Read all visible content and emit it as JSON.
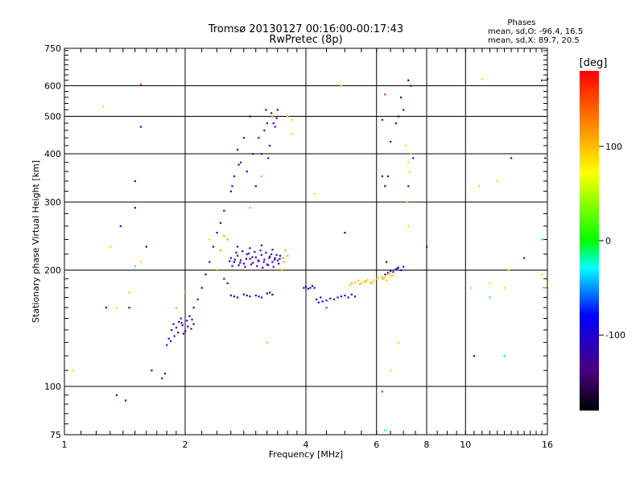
{
  "chart_data": {
    "type": "scatter",
    "title": "Tromsø 20130127 00:16:00-00:17:43",
    "subtitle": "RwPretec (8p)",
    "xlabel": "Frequency [MHz]",
    "ylabel": "Stationary phase Virtual Height [km]",
    "x_scale": "log",
    "y_scale": "log",
    "xlim": [
      1,
      16
    ],
    "ylim": [
      75,
      750
    ],
    "x_ticks": [
      1,
      2,
      4,
      6,
      8,
      10,
      16
    ],
    "y_ticks": [
      75,
      100,
      200,
      300,
      400,
      500,
      600,
      750
    ],
    "grid": true,
    "stats": {
      "heading": "Phases",
      "line1": "mean, sd,O: -96.4, 16.5",
      "line2": "mean, sd,X:  89.7, 20.5"
    },
    "colorbar": {
      "label": "[deg]",
      "ticks": [
        100,
        0,
        -100
      ],
      "range": [
        -180,
        180
      ]
    },
    "point_groups": [
      {
        "phase": -110,
        "x": [
          2.6,
          2.65,
          2.7,
          2.75,
          2.8,
          2.85,
          2.9,
          2.95,
          3.0,
          3.05,
          3.1,
          3.15,
          3.2,
          3.25,
          3.3,
          3.35,
          3.4,
          3.45,
          2.62,
          2.72,
          2.82,
          2.92,
          3.02,
          3.12,
          3.22,
          3.32,
          3.42,
          2.68,
          2.78,
          2.88,
          2.98,
          3.08,
          3.18,
          3.28,
          3.38,
          2.58,
          2.66,
          2.74,
          2.84,
          2.94,
          3.04,
          3.14,
          3.24,
          3.34,
          3.44,
          2.7,
          2.9,
          3.1,
          3.3
        ],
        "y": [
          215,
          210,
          218,
          212,
          208,
          220,
          214,
          209,
          216,
          211,
          219,
          213,
          207,
          217,
          210,
          215,
          212,
          218,
          205,
          206,
          204,
          207,
          205,
          203,
          206,
          204,
          208,
          222,
          224,
          221,
          223,
          225,
          222,
          220,
          219,
          211,
          213,
          209,
          214,
          216,
          212,
          210,
          215,
          213,
          214,
          230,
          228,
          232,
          226
        ]
      },
      {
        "phase": -105,
        "x": [
          2.6,
          2.7,
          2.8,
          2.9,
          3.0,
          3.1,
          3.2,
          3.3,
          2.65,
          2.85,
          3.05,
          3.25,
          2.55,
          2.5
        ],
        "y": [
          172,
          170,
          173,
          171,
          172,
          170,
          174,
          173,
          171,
          172,
          171,
          175,
          185,
          190
        ]
      },
      {
        "phase": -112,
        "x": [
          2.6,
          2.65,
          2.7,
          2.8,
          2.9,
          3.0,
          3.1,
          3.15,
          3.2,
          3.25,
          3.3,
          3.35,
          3.4,
          2.75,
          2.85,
          2.95,
          3.05,
          3.18,
          3.22,
          3.28,
          3.32,
          3.38,
          2.62,
          2.72
        ],
        "y": [
          320,
          350,
          410,
          440,
          500,
          330,
          400,
          460,
          480,
          420,
          500,
          470,
          520,
          380,
          360,
          400,
          440,
          520,
          390,
          510,
          480,
          495,
          330,
          375
        ]
      },
      {
        "phase": -108,
        "x": [
          1.82,
          1.85,
          1.87,
          1.9,
          1.92,
          1.95,
          1.97,
          2.0,
          2.02,
          2.05,
          2.07,
          2.1,
          1.88,
          1.93,
          1.98,
          2.03,
          2.08,
          1.8,
          1.84,
          1.96
        ],
        "y": [
          133,
          140,
          145,
          142,
          138,
          150,
          144,
          139,
          148,
          152,
          141,
          145,
          135,
          147,
          137,
          143,
          149,
          128,
          131,
          146
        ]
      },
      {
        "phase": -106,
        "x": [
          2.1,
          2.15,
          2.2,
          2.25,
          2.3,
          2.35,
          2.4,
          2.45,
          2.5
        ],
        "y": [
          160,
          168,
          180,
          195,
          210,
          230,
          250,
          265,
          285
        ]
      },
      {
        "phase": -103,
        "x": [
          3.95,
          4.0,
          4.05,
          4.1,
          4.15,
          4.2,
          4.25,
          4.3,
          4.35,
          4.4,
          4.5,
          4.6,
          4.7,
          4.8,
          4.9,
          5.0,
          5.1,
          5.2,
          5.3
        ],
        "y": [
          180,
          181,
          179,
          180,
          182,
          180,
          168,
          165,
          170,
          166,
          167,
          169,
          168,
          170,
          171,
          172,
          170,
          173,
          171
        ]
      },
      {
        "phase": -115,
        "x": [
          6.3,
          6.4,
          6.5,
          6.6,
          6.7,
          6.8,
          6.9,
          7.0,
          6.45,
          6.75
        ],
        "y": [
          195,
          197,
          199,
          198,
          201,
          203,
          200,
          204,
          196,
          202
        ]
      },
      {
        "phase": -100,
        "x": [
          1.35,
          1.42,
          1.5,
          1.55,
          1.6,
          1.75,
          1.78,
          1.65,
          1.38,
          1.27,
          1.45,
          1.5
        ],
        "y": [
          95,
          92,
          340,
          470,
          230,
          105,
          108,
          110,
          260,
          160,
          160,
          290
        ]
      },
      {
        "phase": -120,
        "x": [
          6.3,
          6.4,
          6.5,
          6.7,
          6.8,
          6.9,
          7.0,
          6.2,
          6.2,
          6.35,
          7.2,
          7.4,
          10.5,
          13.0,
          14.0,
          15.5,
          15.8,
          8.0
        ],
        "y": [
          330,
          350,
          430,
          480,
          500,
          560,
          520,
          350,
          490,
          210,
          330,
          390,
          120,
          390,
          215,
          620,
          390,
          230
        ]
      },
      {
        "phase": 100,
        "x": [
          5.3,
          5.4,
          5.5,
          5.6,
          5.7,
          5.8,
          5.9,
          6.0,
          5.45,
          5.65,
          5.85,
          6.05,
          5.15,
          5.2,
          6.2,
          6.25
        ],
        "y": [
          186,
          188,
          185,
          187,
          189,
          186,
          188,
          190,
          184,
          187,
          185,
          191,
          183,
          185,
          192,
          190
        ]
      },
      {
        "phase": 95,
        "x": [
          6.2,
          6.3,
          6.4,
          6.5,
          6.6,
          6.35,
          6.45
        ],
        "y": [
          190,
          192,
          195,
          193,
          194,
          188,
          196
        ]
      },
      {
        "phase": 110,
        "x": [
          3.5,
          3.55,
          3.6,
          3.48,
          3.52,
          2.9,
          3.1,
          2.55,
          2.5,
          2.45,
          2.4,
          3.2,
          3.3,
          1.9,
          2.0
        ],
        "y": [
          215,
          225,
          218,
          200,
          210,
          290,
          350,
          240,
          245,
          225,
          200,
          130,
          500,
          160,
          175
        ]
      },
      {
        "phase": 90,
        "x": [
          7.2,
          7.3,
          7.1,
          7.2,
          7.25,
          7.15,
          6.8,
          10.8,
          11.0,
          12.0,
          12.5,
          11.5,
          10.3,
          12.8,
          15.5,
          1.05,
          1.25,
          1.55,
          1.45,
          3.6,
          4.2,
          3.7,
          4.9
        ],
        "y": [
          380,
          400,
          420,
          260,
          360,
          300,
          130,
          330,
          625,
          340,
          180,
          185,
          180,
          200,
          195,
          110,
          530,
          210,
          175,
          500,
          315,
          490,
          600
        ]
      },
      {
        "phase": 160,
        "x": [
          1.55,
          7.2,
          6.2,
          6.3,
          4.5
        ],
        "y": [
          605,
          620,
          97,
          570,
          160
        ]
      },
      {
        "phase": 50,
        "x": [
          1.3,
          1.35,
          2.3,
          3.7,
          15.8,
          6.5
        ],
        "y": [
          230,
          160,
          240,
          450,
          180,
          110
        ]
      },
      {
        "phase": -20,
        "x": [
          1.5,
          12.5,
          11.5,
          15.5,
          6.3
        ],
        "y": [
          205,
          120,
          170,
          240,
          77
        ]
      },
      {
        "phase": -150,
        "x": [
          7.3,
          7.2,
          16.0,
          5.0
        ],
        "y": [
          600,
          620,
          625,
          250
        ]
      }
    ]
  }
}
